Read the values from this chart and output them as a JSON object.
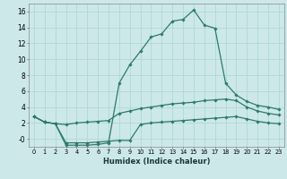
{
  "xlabel": "Humidex (Indice chaleur)",
  "bg_color": "#cce8e8",
  "line_color": "#2d7a6e",
  "grid_color": "#aad4d4",
  "ylim": [
    -1.0,
    17.0
  ],
  "xlim": [
    -0.5,
    23.5
  ],
  "yticks": [
    0,
    2,
    4,
    6,
    8,
    10,
    12,
    14,
    16
  ],
  "xticks": [
    0,
    1,
    2,
    3,
    4,
    5,
    6,
    7,
    8,
    9,
    10,
    11,
    12,
    13,
    14,
    15,
    16,
    17,
    18,
    19,
    20,
    21,
    22,
    23
  ],
  "curves": [
    [
      0,
      1,
      2,
      3,
      4,
      5,
      6,
      7,
      8,
      9,
      10,
      11,
      12,
      13,
      14,
      15,
      16,
      17,
      18,
      19,
      20,
      21,
      22,
      23
    ],
    [
      2.8,
      2.1,
      1.9,
      1.8,
      2.0,
      2.1,
      2.2,
      2.3,
      3.2,
      3.5,
      3.8,
      4.0,
      4.2,
      4.4,
      4.5,
      4.6,
      4.8,
      4.9,
      5.0,
      4.8,
      4.0,
      3.5,
      3.2,
      3.0
    ],
    [
      2.8,
      2.1,
      1.9,
      -0.5,
      -0.5,
      -0.5,
      -0.4,
      -0.3,
      -0.2,
      -0.2,
      1.8,
      2.0,
      2.1,
      2.2,
      2.3,
      2.4,
      2.5,
      2.6,
      2.7,
      2.8,
      2.5,
      2.2,
      2.0,
      1.9
    ],
    [
      2.8,
      2.1,
      1.9,
      -0.8,
      -0.8,
      -0.8,
      -0.7,
      -0.5,
      7.0,
      9.3,
      11.0,
      12.8,
      13.2,
      14.8,
      15.0,
      16.2,
      14.3,
      13.9,
      7.0,
      5.5,
      4.7,
      4.2,
      4.0,
      3.7
    ]
  ],
  "marker": "D",
  "markersize": 1.8,
  "linewidth": 0.9
}
